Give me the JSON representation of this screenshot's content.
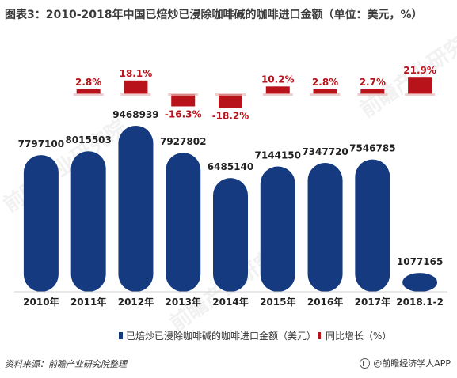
{
  "title": "图表3：2010-2018年中国已焙炒已浸除咖啡碱的咖啡进口金额（单位：美元，%）",
  "chart_data": {
    "type": "bar",
    "categories": [
      "2010年",
      "2011年",
      "2012年",
      "2013年",
      "2014年",
      "2015年",
      "2016年",
      "2017年",
      "2018.1-2"
    ],
    "series": [
      {
        "name": "已焙炒已浸除咖啡碱的咖啡进口金额（美元）",
        "values": [
          7797100,
          8015503,
          9468939,
          7927802,
          6485140,
          7144150,
          7347720,
          7546785,
          1077165
        ],
        "color": "#153a80"
      },
      {
        "name": "同比增长（%）",
        "values": [
          null,
          2.8,
          18.1,
          -16.3,
          -18.2,
          10.2,
          2.8,
          2.7,
          21.9
        ],
        "labels": [
          "",
          "2.8%",
          "18.1%",
          "-16.3%",
          "-18.2%",
          "10.2%",
          "2.8%",
          "2.7%",
          "21.9%"
        ],
        "color": "#b8121a"
      }
    ],
    "bar_labels": [
      "7797100",
      "8015503",
      "9468939",
      "7927802",
      "6485140",
      "7144150",
      "7347720",
      "7546785",
      "1077165"
    ],
    "legend_position": "bottom",
    "grid": false
  },
  "legend": {
    "bar_label": "已焙炒已浸除咖啡碱的咖啡进口金额（美元）",
    "line_label": "同比增长（%）"
  },
  "source": "资料来源：前瞻产业研究院整理",
  "brand": "@前瞻经济学人APP",
  "watermark": "前瞻产业研究院"
}
